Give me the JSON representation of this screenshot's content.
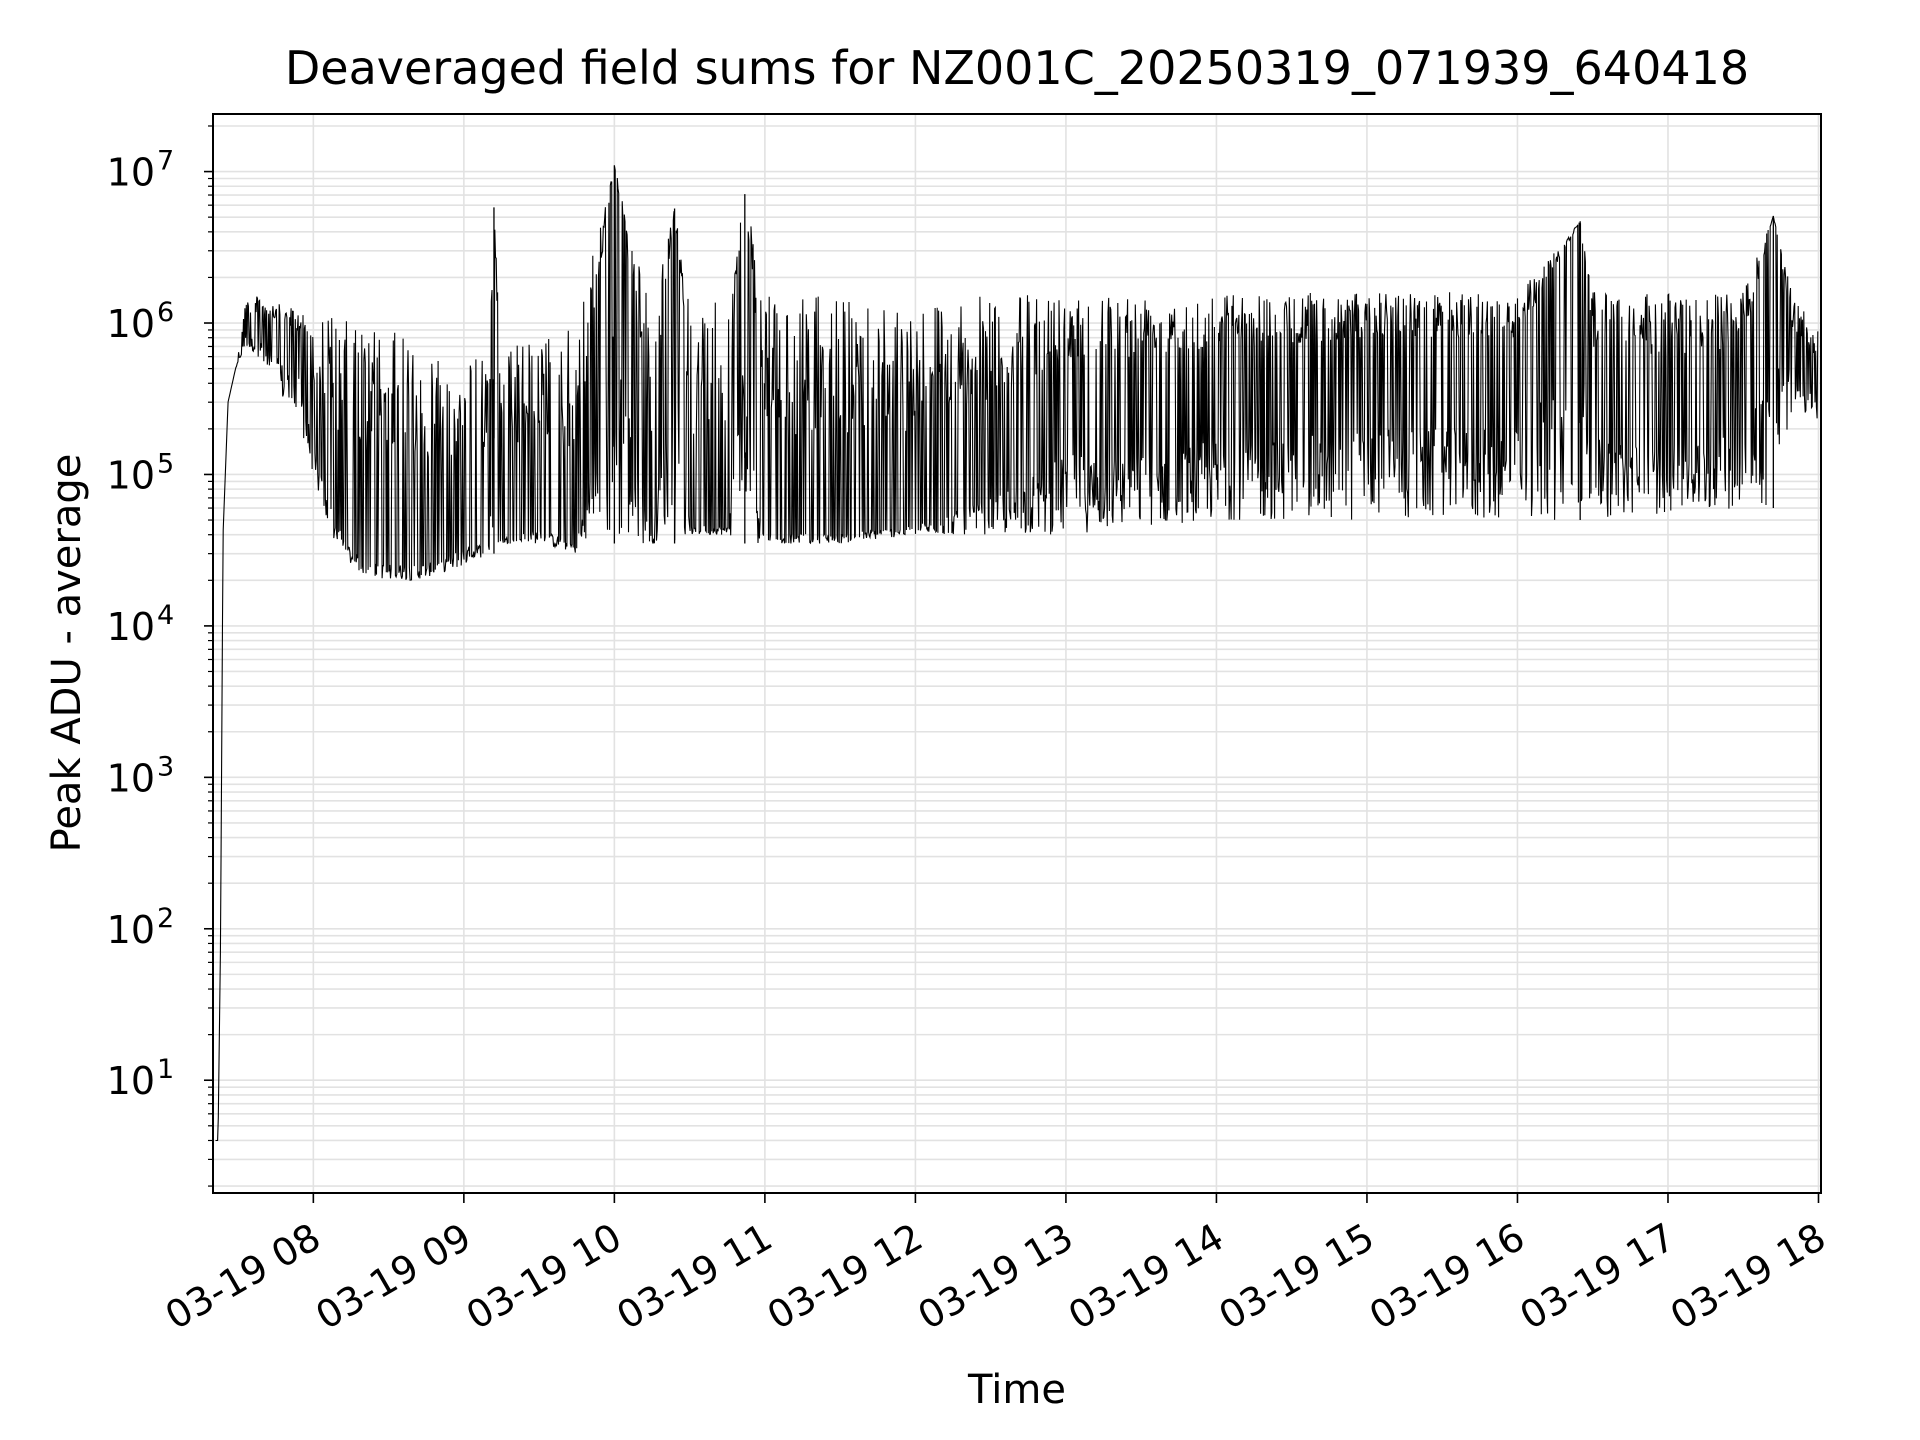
{
  "chart_data": {
    "type": "line",
    "title": "Deaveraged field sums for NZ001C_20250319_071939_640418",
    "xlabel": "Time",
    "ylabel": "Peak ADU - average",
    "x_scale": "time",
    "y_scale": "log",
    "xlim": [
      "2025-03-19 07:20",
      "2025-03-19 18:01"
    ],
    "ylim": [
      1.8,
      24000000
    ],
    "x_ticks": [
      {
        "value": "2025-03-19 08:00",
        "label": "03-19 08"
      },
      {
        "value": "2025-03-19 09:00",
        "label": "03-19 09"
      },
      {
        "value": "2025-03-19 10:00",
        "label": "03-19 10"
      },
      {
        "value": "2025-03-19 11:00",
        "label": "03-19 11"
      },
      {
        "value": "2025-03-19 12:00",
        "label": "03-19 12"
      },
      {
        "value": "2025-03-19 13:00",
        "label": "03-19 13"
      },
      {
        "value": "2025-03-19 14:00",
        "label": "03-19 14"
      },
      {
        "value": "2025-03-19 15:00",
        "label": "03-19 15"
      },
      {
        "value": "2025-03-19 16:00",
        "label": "03-19 16"
      },
      {
        "value": "2025-03-19 17:00",
        "label": "03-19 17"
      },
      {
        "value": "2025-03-19 18:00",
        "label": "03-19 18"
      }
    ],
    "y_ticks": [
      {
        "value": 10,
        "base": "10",
        "exp": "1"
      },
      {
        "value": 100,
        "base": "10",
        "exp": "2"
      },
      {
        "value": 1000,
        "base": "10",
        "exp": "3"
      },
      {
        "value": 10000,
        "base": "10",
        "exp": "4"
      },
      {
        "value": 100000,
        "base": "10",
        "exp": "5"
      },
      {
        "value": 1000000,
        "base": "10",
        "exp": "6"
      },
      {
        "value": 10000000,
        "base": "10",
        "exp": "7"
      }
    ],
    "grid": true,
    "line_color": "#000000",
    "series": [
      {
        "x": [
          "2025-03-19 07:21",
          "2025-03-19 07:22",
          "2025-03-19 07:23",
          "2025-03-19 07:24",
          "2025-03-19 07:26",
          "2025-03-19 07:29",
          "2025-03-19 07:33",
          "2025-03-19 07:38",
          "2025-03-19 07:43",
          "2025-03-19 07:48",
          "2025-03-19 07:55",
          "2025-03-19 08:00",
          "2025-03-19 08:05",
          "2025-03-19 08:10",
          "2025-03-19 08:15",
          "2025-03-19 08:20",
          "2025-03-19 08:30",
          "2025-03-19 08:40",
          "2025-03-19 08:50",
          "2025-03-19 09:00",
          "2025-03-19 09:10",
          "2025-03-19 09:12",
          "2025-03-19 09:15",
          "2025-03-19 09:30",
          "2025-03-19 09:45",
          "2025-03-19 10:00",
          "2025-03-19 10:15",
          "2025-03-19 10:24",
          "2025-03-19 10:30",
          "2025-03-19 10:45",
          "2025-03-19 10:52",
          "2025-03-19 11:00",
          "2025-03-19 11:30",
          "2025-03-19 12:00",
          "2025-03-19 12:30",
          "2025-03-19 13:00",
          "2025-03-19 13:30",
          "2025-03-19 14:00",
          "2025-03-19 14:30",
          "2025-03-19 15:00",
          "2025-03-19 15:30",
          "2025-03-19 16:00",
          "2025-03-19 16:25",
          "2025-03-19 16:30",
          "2025-03-19 17:00",
          "2025-03-19 17:30",
          "2025-03-19 17:42",
          "2025-03-19 17:50",
          "2025-03-19 18:00"
        ],
        "values": [
          4,
          4,
          80,
          40000,
          300000,
          500000,
          900000,
          1000000,
          900000,
          800000,
          700000,
          200000,
          100000,
          60000,
          40000,
          30000,
          30000,
          30000,
          30000,
          40000,
          40000,
          5800000,
          40000,
          50000,
          40000,
          11000000,
          40000,
          5700000,
          50000,
          50000,
          7100000,
          45000,
          45000,
          50000,
          100000,
          300000,
          300000,
          400000,
          400000,
          500000,
          500000,
          500000,
          4700000,
          400000,
          300000,
          400000,
          5100000,
          600000,
          400000
        ],
        "envelope_high": [
          4,
          4,
          80,
          40000,
          300000,
          500000,
          1500000,
          1500000,
          1400000,
          1300000,
          1200000,
          1200000,
          1200000,
          1100000,
          1000000,
          1000000,
          900000,
          800000,
          700000,
          600000,
          600000,
          5800000,
          700000,
          800000,
          1000000,
          11000000,
          1200000,
          5700000,
          1300000,
          1400000,
          7100000,
          1500000,
          1500000,
          1500000,
          1500000,
          1600000,
          1600000,
          1600000,
          1600000,
          1600000,
          1600000,
          1600000,
          4700000,
          1600000,
          1600000,
          1600000,
          5100000,
          1500000,
          900000
        ],
        "envelope_low": [
          4,
          4,
          80,
          40000,
          300000,
          500000,
          700000,
          600000,
          400000,
          300000,
          200000,
          100000,
          50000,
          30000,
          25000,
          22000,
          20000,
          20000,
          22000,
          25000,
          30000,
          30000,
          35000,
          35000,
          30000,
          35000,
          35000,
          35000,
          40000,
          40000,
          35000,
          35000,
          35000,
          40000,
          40000,
          40000,
          45000,
          50000,
          50000,
          50000,
          50000,
          50000,
          50000,
          50000,
          55000,
          60000,
          60000,
          300000,
          200000
        ]
      }
    ]
  }
}
